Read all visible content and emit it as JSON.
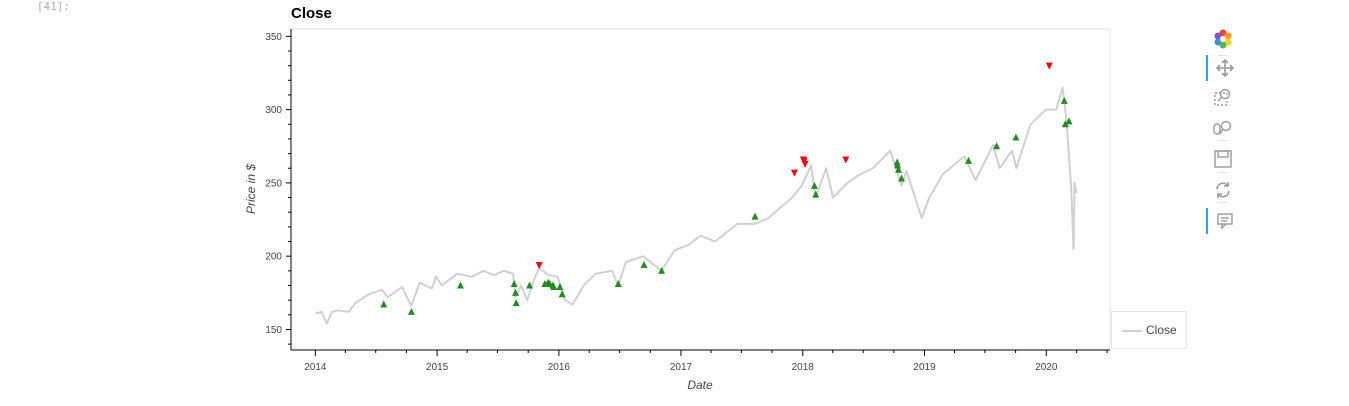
{
  "cell": {
    "prompt": "[41]:"
  },
  "chart_data": {
    "type": "line",
    "title": "Close",
    "xlabel": "Date",
    "ylabel": "Price in $",
    "xlim": [
      "2013-10-20",
      "2020-07-10"
    ],
    "ylim": [
      136,
      355
    ],
    "x_ticks": [
      "2014",
      "2015",
      "2016",
      "2017",
      "2018",
      "2019",
      "2020"
    ],
    "y_ticks": [
      150,
      200,
      250,
      300,
      350
    ],
    "grid": false,
    "legend_position": "bottom-right",
    "series": [
      {
        "name": "Close",
        "color": "#d0d0d0",
        "points": [
          [
            "2014-01-02",
            161
          ],
          [
            "2014-01-20",
            162
          ],
          [
            "2014-02-04",
            154
          ],
          [
            "2014-02-20",
            162
          ],
          [
            "2014-03-10",
            163
          ],
          [
            "2014-04-11",
            162
          ],
          [
            "2014-05-01",
            168
          ],
          [
            "2014-06-10",
            174
          ],
          [
            "2014-07-20",
            177
          ],
          [
            "2014-08-06",
            172
          ],
          [
            "2014-09-18",
            179
          ],
          [
            "2014-10-15",
            166
          ],
          [
            "2014-11-10",
            182
          ],
          [
            "2014-12-16",
            178
          ],
          [
            "2014-12-29",
            186
          ],
          [
            "2015-01-15",
            180
          ],
          [
            "2015-03-02",
            188
          ],
          [
            "2015-04-15",
            186
          ],
          [
            "2015-05-20",
            190
          ],
          [
            "2015-06-20",
            187
          ],
          [
            "2015-07-20",
            190
          ],
          [
            "2015-08-17",
            188
          ],
          [
            "2015-08-24",
            172
          ],
          [
            "2015-09-10",
            180
          ],
          [
            "2015-09-28",
            170
          ],
          [
            "2015-10-20",
            185
          ],
          [
            "2015-11-03",
            192
          ],
          [
            "2015-12-01",
            187
          ],
          [
            "2015-12-28",
            186
          ],
          [
            "2016-01-20",
            170
          ],
          [
            "2016-02-11",
            167
          ],
          [
            "2016-03-15",
            180
          ],
          [
            "2016-04-20",
            188
          ],
          [
            "2016-06-08",
            190
          ],
          [
            "2016-06-27",
            180
          ],
          [
            "2016-07-20",
            196
          ],
          [
            "2016-09-09",
            200
          ],
          [
            "2016-11-04",
            190
          ],
          [
            "2016-12-13",
            204
          ],
          [
            "2017-01-25",
            208
          ],
          [
            "2017-03-01",
            214
          ],
          [
            "2017-04-13",
            210
          ],
          [
            "2017-06-19",
            222
          ],
          [
            "2017-08-10",
            222
          ],
          [
            "2017-09-20",
            226
          ],
          [
            "2017-10-20",
            232
          ],
          [
            "2017-11-30",
            240
          ],
          [
            "2017-12-29",
            248
          ],
          [
            "2018-01-26",
            262
          ],
          [
            "2018-02-08",
            240
          ],
          [
            "2018-03-12",
            260
          ],
          [
            "2018-04-02",
            240
          ],
          [
            "2018-05-15",
            250
          ],
          [
            "2018-06-15",
            255
          ],
          [
            "2018-07-30",
            260
          ],
          [
            "2018-09-20",
            272
          ],
          [
            "2018-10-24",
            248
          ],
          [
            "2018-11-08",
            258
          ],
          [
            "2018-12-24",
            226
          ],
          [
            "2019-01-15",
            240
          ],
          [
            "2019-02-25",
            256
          ],
          [
            "2019-04-30",
            268
          ],
          [
            "2019-06-03",
            252
          ],
          [
            "2019-07-26",
            276
          ],
          [
            "2019-08-14",
            260
          ],
          [
            "2019-09-20",
            272
          ],
          [
            "2019-10-03",
            260
          ],
          [
            "2019-11-15",
            290
          ],
          [
            "2019-12-31",
            300
          ],
          [
            "2020-01-31",
            300
          ],
          [
            "2020-02-19",
            315
          ],
          [
            "2020-03-02",
            292
          ],
          [
            "2020-03-16",
            245
          ],
          [
            "2020-03-23",
            205
          ],
          [
            "2020-03-26",
            250
          ],
          [
            "2020-03-31",
            243
          ]
        ]
      }
    ],
    "buy_markers": {
      "symbol": "triangle-up",
      "color": "#228b22",
      "points": [
        [
          "2014-07-25",
          167
        ],
        [
          "2014-10-16",
          162
        ],
        [
          "2015-03-12",
          180
        ],
        [
          "2015-08-20",
          181
        ],
        [
          "2015-08-24",
          175
        ],
        [
          "2015-08-26",
          168
        ],
        [
          "2015-10-05",
          180
        ],
        [
          "2015-11-20",
          181
        ],
        [
          "2015-11-30",
          182
        ],
        [
          "2015-12-05",
          181
        ],
        [
          "2015-12-14",
          180
        ],
        [
          "2015-12-17",
          179
        ],
        [
          "2016-01-04",
          179
        ],
        [
          "2016-01-11",
          174
        ],
        [
          "2016-06-27",
          181
        ],
        [
          "2016-09-12",
          194
        ],
        [
          "2016-11-04",
          190
        ],
        [
          "2017-08-11",
          227
        ],
        [
          "2018-02-05",
          248
        ],
        [
          "2018-02-09",
          242
        ],
        [
          "2018-10-11",
          264
        ],
        [
          "2018-10-12",
          262
        ],
        [
          "2018-10-15",
          259
        ],
        [
          "2018-10-24",
          253
        ],
        [
          "2019-05-13",
          265
        ],
        [
          "2019-08-05",
          275
        ],
        [
          "2019-10-02",
          281
        ],
        [
          "2020-02-24",
          306
        ],
        [
          "2020-02-27",
          290
        ],
        [
          "2020-03-09",
          292
        ]
      ]
    },
    "sell_markers": {
      "symbol": "triangle-down",
      "color": "#ff0000",
      "points": [
        [
          "2015-11-03",
          194
        ],
        [
          "2017-12-07",
          257
        ],
        [
          "2018-01-03",
          266
        ],
        [
          "2018-01-05",
          265
        ],
        [
          "2018-01-08",
          263
        ],
        [
          "2018-05-10",
          266
        ],
        [
          "2020-01-10",
          330
        ]
      ]
    }
  },
  "legend": {
    "items": [
      {
        "label": "Close",
        "color": "#d0d0d0"
      }
    ]
  },
  "toolbar": {
    "tools": [
      {
        "name": "bokeh-logo-icon",
        "active": false
      },
      {
        "name": "pan-icon",
        "active": true
      },
      {
        "name": "box-zoom-icon",
        "active": false
      },
      {
        "name": "wheel-zoom-icon",
        "active": false
      },
      {
        "name": "save-icon",
        "active": false
      },
      {
        "name": "reset-icon",
        "active": false
      },
      {
        "name": "hover-icon",
        "active": true
      }
    ]
  }
}
